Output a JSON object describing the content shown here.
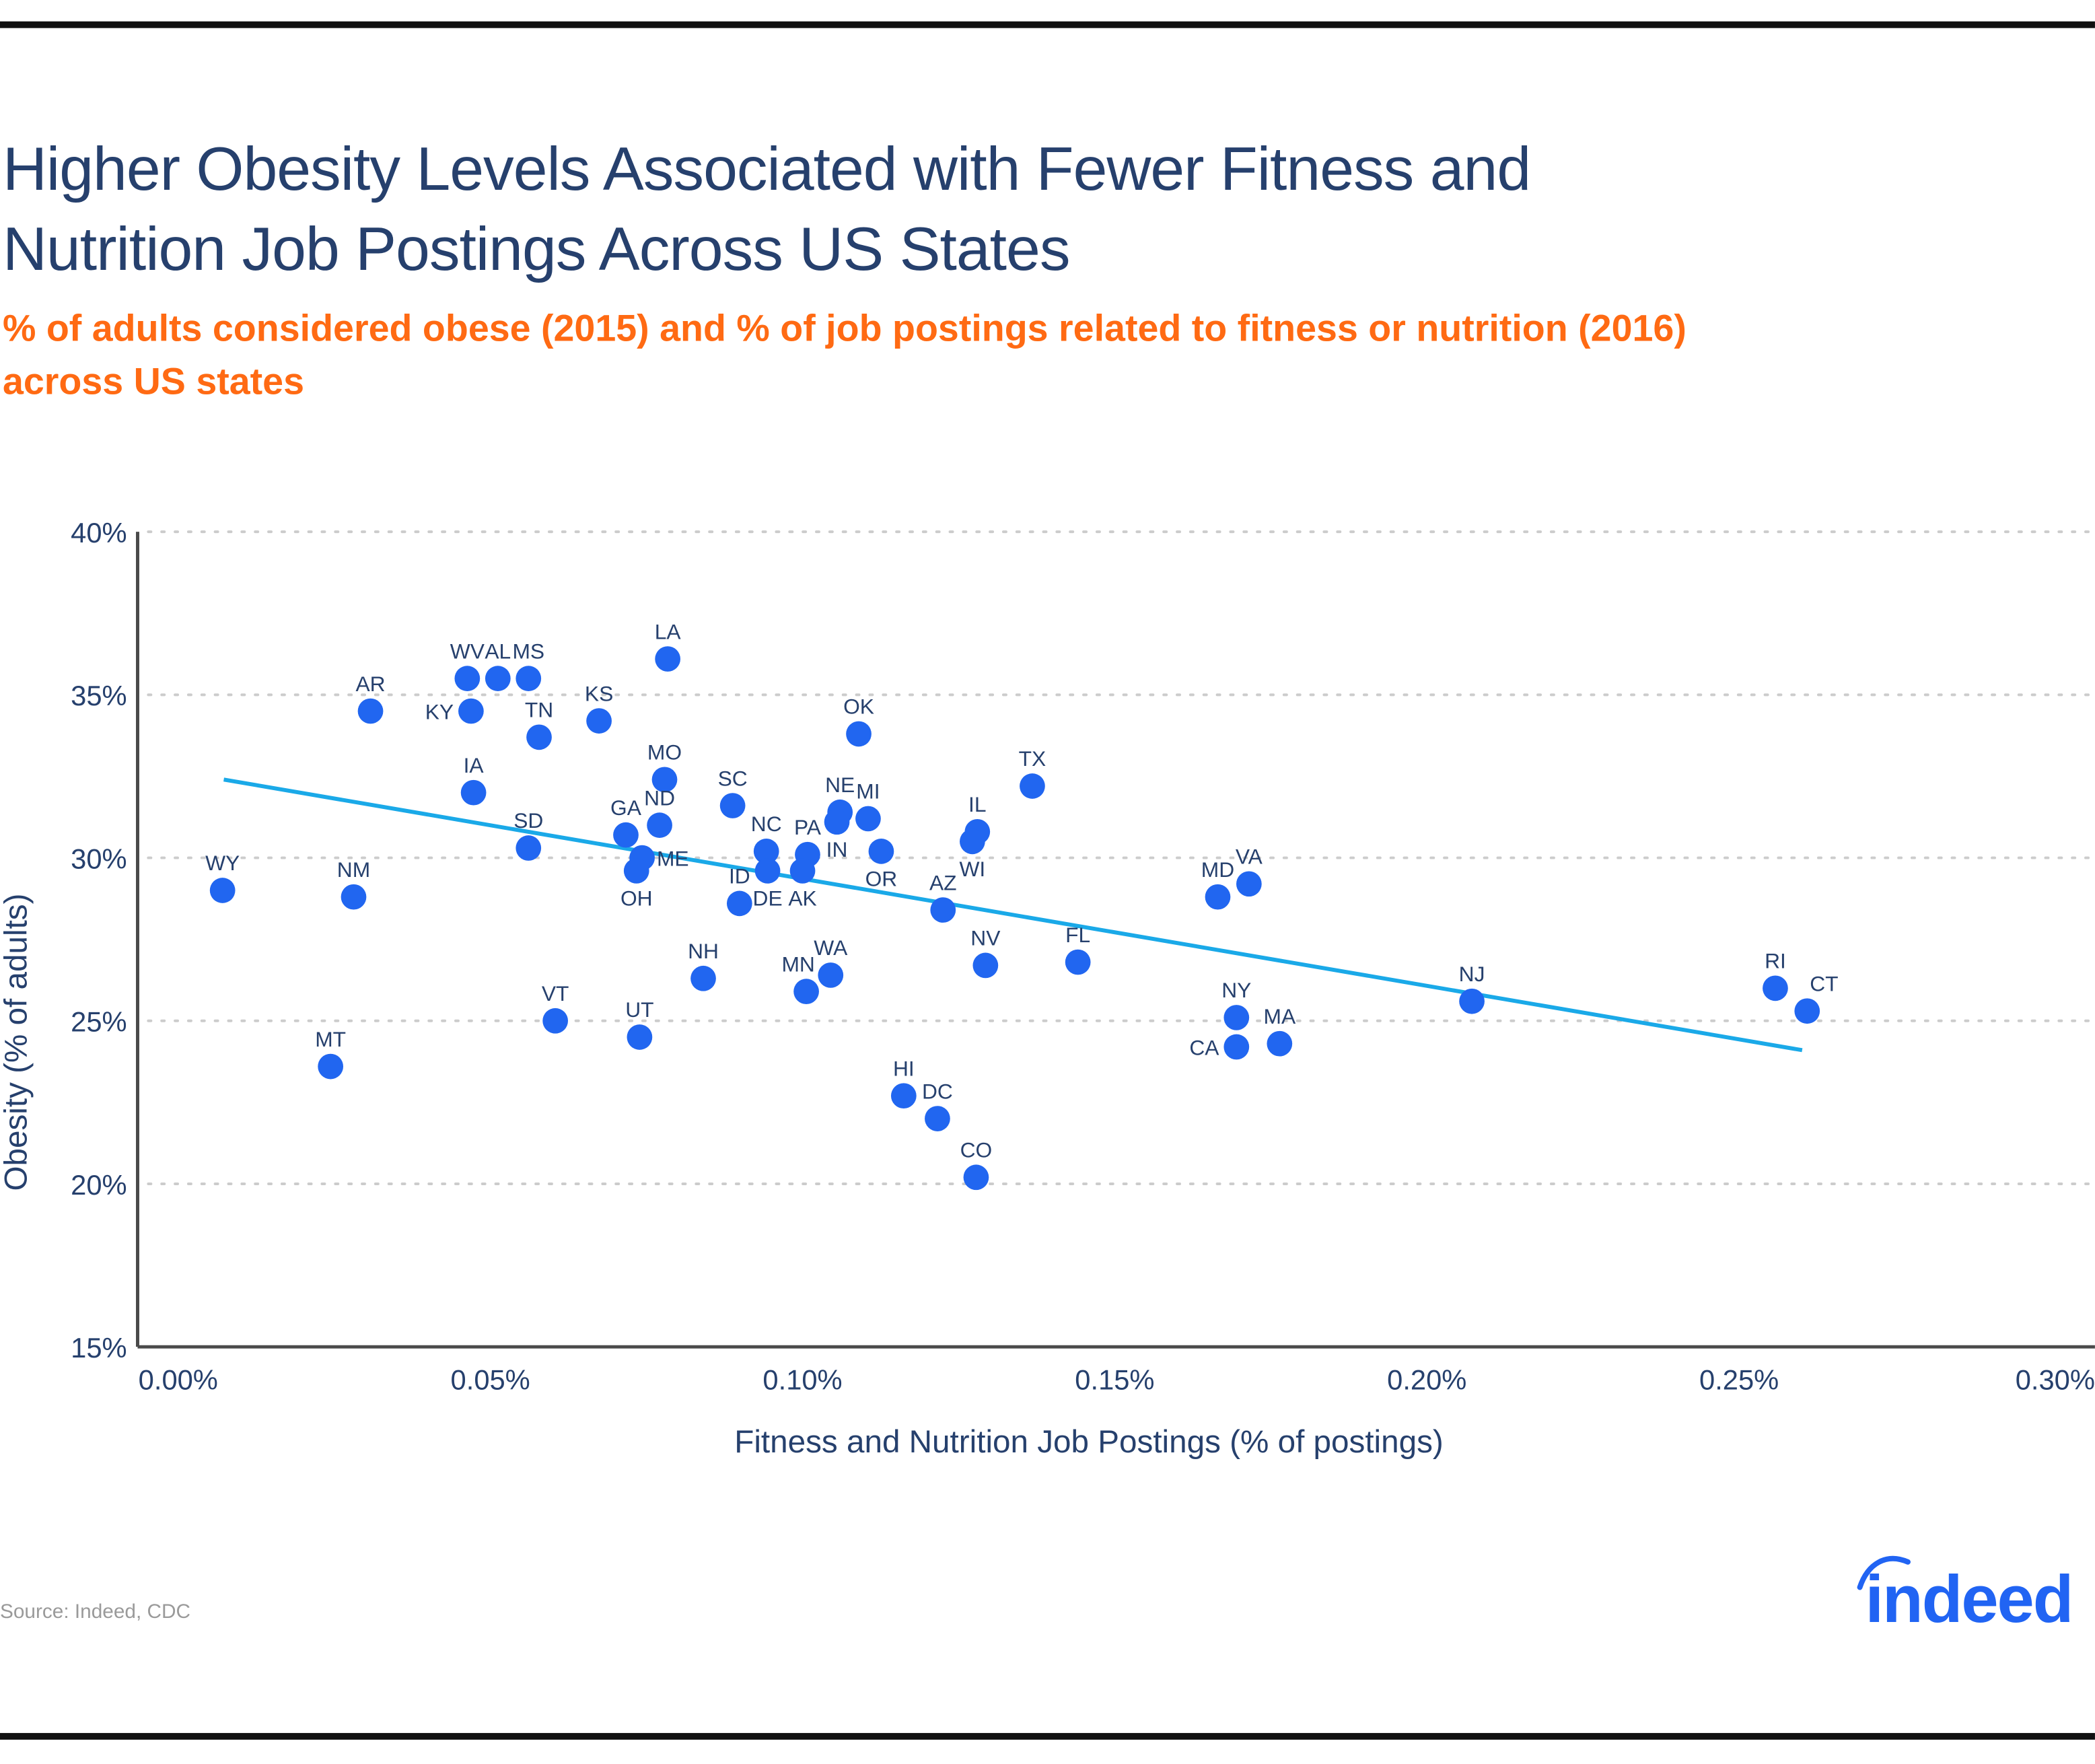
{
  "title": "Higher Obesity Levels Associated with Fewer Fitness and Nutrition Job Postings Across US States",
  "subtitle": "% of adults considered obese (2015) and % of job postings related to fitness or nutrition (2016) across US states",
  "source": "Source: Indeed, CDC",
  "logo_text": "indeed",
  "colors": {
    "title": "#26406d",
    "subtitle": "#ff6a13",
    "points": "#2166f0",
    "trendline": "#1aa9e8",
    "axis": "#4a4a4a",
    "grid": "#cccccc"
  },
  "chart_data": {
    "type": "scatter",
    "xlabel": "Fitness and Nutrition Job Postings (% of postings)",
    "ylabel": "Obesity (% of adults)",
    "xlim": [
      -0.0065,
      0.307
    ],
    "ylim": [
      15,
      40
    ],
    "xticks": [
      0,
      0.05,
      0.1,
      0.15,
      0.2,
      0.25,
      0.3
    ],
    "xtick_labels": [
      "0.00%",
      "0.05%",
      "0.10%",
      "0.15%",
      "0.20%",
      "0.25%",
      "0.30%"
    ],
    "yticks": [
      15,
      20,
      25,
      30,
      35,
      40
    ],
    "ytick_labels": [
      "15%",
      "20%",
      "25%",
      "30%",
      "35%",
      "40%"
    ],
    "grid": "horizontal dotted",
    "trendline": {
      "x": [
        0.0073,
        0.2601
      ],
      "y": [
        32.4,
        24.1
      ]
    },
    "points": [
      {
        "label": "WY",
        "x": 0.0071,
        "y": 29.0,
        "label_pos": "above"
      },
      {
        "label": "NM",
        "x": 0.0281,
        "y": 28.8,
        "label_pos": "above"
      },
      {
        "label": "MT",
        "x": 0.0244,
        "y": 23.6,
        "label_pos": "above"
      },
      {
        "label": "AR",
        "x": 0.0308,
        "y": 34.5,
        "label_pos": "above"
      },
      {
        "label": "WV",
        "x": 0.0463,
        "y": 35.5,
        "label_pos": "above"
      },
      {
        "label": "KY",
        "x": 0.0469,
        "y": 34.5,
        "label_pos": "left"
      },
      {
        "label": "AL",
        "x": 0.0512,
        "y": 35.5,
        "label_pos": "above"
      },
      {
        "label": "MS",
        "x": 0.0561,
        "y": 35.5,
        "label_pos": "above"
      },
      {
        "label": "TN",
        "x": 0.0578,
        "y": 33.7,
        "label_pos": "above"
      },
      {
        "label": "IA",
        "x": 0.0473,
        "y": 32.0,
        "label_pos": "above"
      },
      {
        "label": "SD",
        "x": 0.0561,
        "y": 30.3,
        "label_pos": "above"
      },
      {
        "label": "VT",
        "x": 0.0604,
        "y": 25.0,
        "label_pos": "above"
      },
      {
        "label": "KS",
        "x": 0.0674,
        "y": 34.2,
        "label_pos": "above"
      },
      {
        "label": "GA",
        "x": 0.0717,
        "y": 30.7,
        "label_pos": "above"
      },
      {
        "label": "ND",
        "x": 0.0771,
        "y": 31.0,
        "label_pos": "above"
      },
      {
        "label": "ME",
        "x": 0.0743,
        "y": 30.0,
        "label_pos": "right"
      },
      {
        "label": "OH",
        "x": 0.0734,
        "y": 29.6,
        "label_pos": "below"
      },
      {
        "label": "UT",
        "x": 0.0739,
        "y": 24.5,
        "label_pos": "above"
      },
      {
        "label": "LA",
        "x": 0.0784,
        "y": 36.1,
        "label_pos": "above"
      },
      {
        "label": "MO",
        "x": 0.0779,
        "y": 32.4,
        "label_pos": "above"
      },
      {
        "label": "NH",
        "x": 0.0841,
        "y": 26.3,
        "label_pos": "above"
      },
      {
        "label": "SC",
        "x": 0.0888,
        "y": 31.6,
        "label_pos": "above"
      },
      {
        "label": "ID",
        "x": 0.0899,
        "y": 28.6,
        "label_pos": "above"
      },
      {
        "label": "NC",
        "x": 0.0942,
        "y": 30.2,
        "label_pos": "above"
      },
      {
        "label": "DE",
        "x": 0.0944,
        "y": 29.6,
        "label_pos": "below"
      },
      {
        "label": "PA",
        "x": 0.1008,
        "y": 30.1,
        "label_pos": "above"
      },
      {
        "label": "AK",
        "x": 0.1,
        "y": 29.6,
        "label_pos": "below"
      },
      {
        "label": "MN",
        "x": 0.1006,
        "y": 25.9,
        "label_pos": "above-left"
      },
      {
        "label": "WA",
        "x": 0.1045,
        "y": 26.4,
        "label_pos": "above"
      },
      {
        "label": "NE",
        "x": 0.106,
        "y": 31.4,
        "label_pos": "above"
      },
      {
        "label": "IN",
        "x": 0.1055,
        "y": 31.1,
        "label_pos": "below"
      },
      {
        "label": "MI",
        "x": 0.1105,
        "y": 31.2,
        "label_pos": "above"
      },
      {
        "label": "OK",
        "x": 0.109,
        "y": 33.8,
        "label_pos": "above"
      },
      {
        "label": "OR",
        "x": 0.1126,
        "y": 30.2,
        "label_pos": "below"
      },
      {
        "label": "HI",
        "x": 0.1162,
        "y": 22.7,
        "label_pos": "above"
      },
      {
        "label": "DC",
        "x": 0.1216,
        "y": 22.0,
        "label_pos": "above"
      },
      {
        "label": "AZ",
        "x": 0.1225,
        "y": 28.4,
        "label_pos": "above"
      },
      {
        "label": "IL",
        "x": 0.128,
        "y": 30.8,
        "label_pos": "above"
      },
      {
        "label": "WI",
        "x": 0.1272,
        "y": 30.5,
        "label_pos": "below"
      },
      {
        "label": "CO",
        "x": 0.1278,
        "y": 20.2,
        "label_pos": "above"
      },
      {
        "label": "NV",
        "x": 0.1293,
        "y": 26.7,
        "label_pos": "above"
      },
      {
        "label": "TX",
        "x": 0.1368,
        "y": 32.2,
        "label_pos": "above"
      },
      {
        "label": "FL",
        "x": 0.1441,
        "y": 26.8,
        "label_pos": "above"
      },
      {
        "label": "MD",
        "x": 0.1665,
        "y": 28.8,
        "label_pos": "above"
      },
      {
        "label": "VA",
        "x": 0.1715,
        "y": 29.2,
        "label_pos": "above"
      },
      {
        "label": "NY",
        "x": 0.1695,
        "y": 25.1,
        "label_pos": "above"
      },
      {
        "label": "CA",
        "x": 0.1695,
        "y": 24.2,
        "label_pos": "left"
      },
      {
        "label": "MA",
        "x": 0.1764,
        "y": 24.3,
        "label_pos": "above"
      },
      {
        "label": "NJ",
        "x": 0.2072,
        "y": 25.6,
        "label_pos": "above"
      },
      {
        "label": "RI",
        "x": 0.2558,
        "y": 26.0,
        "label_pos": "above"
      },
      {
        "label": "CT",
        "x": 0.2609,
        "y": 25.3,
        "label_pos": "above-right"
      }
    ]
  }
}
